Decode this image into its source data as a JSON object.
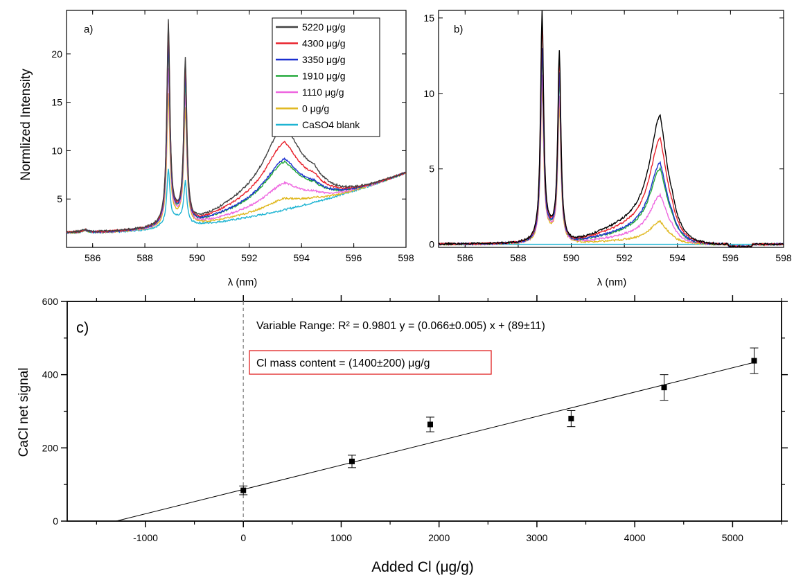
{
  "chart_data": [
    {
      "panel": "a)",
      "type": "line",
      "xlabel": "λ (nm)",
      "ylabel": "Normlized Intensity",
      "xlim": [
        585,
        598
      ],
      "ylim": [
        0,
        24.5
      ],
      "xticks": [
        586,
        588,
        590,
        592,
        594,
        596,
        598
      ],
      "yticks": [
        5,
        10,
        15,
        20
      ],
      "legend_position": "top-right",
      "series": [
        {
          "name": "5220 μg/g",
          "color": "#404040",
          "peaks": {
            "na1": 22.8,
            "na2": 19.0,
            "cacl": 11.3
          }
        },
        {
          "name": "4300 μg/g",
          "color": "#e8202a",
          "peaks": {
            "na1": 22.4,
            "na2": 18.6,
            "cacl": 10.0
          }
        },
        {
          "name": "3350 μg/g",
          "color": "#1a2fd0",
          "peaks": {
            "na1": 20.7,
            "na2": 17.6,
            "cacl": 8.8
          }
        },
        {
          "name": "1910 μg/g",
          "color": "#22a83a",
          "peaks": {
            "na1": 20.3,
            "na2": 16.8,
            "cacl": 8.6
          }
        },
        {
          "name": "1110 μg/g",
          "color": "#ee66e0",
          "peaks": {
            "na1": 18.0,
            "na2": 15.5,
            "cacl": 7.1
          }
        },
        {
          "name": "0 μg/g",
          "color": "#e0b820",
          "peaks": {
            "na1": 15.5,
            "na2": 14.0,
            "cacl": 6.0
          }
        },
        {
          "name": "CaSO4 blank",
          "color": "#1eb4d2",
          "peaks": {
            "na1": 7.8,
            "na2": 6.6,
            "cacl": 5.2
          }
        }
      ]
    },
    {
      "panel": "b)",
      "type": "line",
      "xlabel": "λ (nm)",
      "xlim": [
        585,
        598
      ],
      "ylim": [
        -0.2,
        15.5
      ],
      "xticks": [
        586,
        588,
        590,
        592,
        594,
        596,
        598
      ],
      "yticks": [
        0,
        5,
        10,
        15
      ],
      "series": [
        {
          "color": "#000000",
          "peaks": {
            "na1": 15.0,
            "na2": 12.4,
            "cacl": 6.8
          }
        },
        {
          "color": "#e8202a",
          "peaks": {
            "na1": 14.3,
            "na2": 12.0,
            "cacl": 5.6
          }
        },
        {
          "color": "#1a2fd0",
          "peaks": {
            "na1": 12.5,
            "na2": 11.0,
            "cacl": 4.3
          }
        },
        {
          "color": "#22a83a",
          "peaks": {
            "na1": 12.2,
            "na2": 10.6,
            "cacl": 4.0
          }
        },
        {
          "color": "#ee66e0",
          "peaks": {
            "na1": 10.8,
            "na2": 9.5,
            "cacl": 2.6
          }
        },
        {
          "color": "#e0b820",
          "peaks": {
            "na1": 10.0,
            "na2": 8.8,
            "cacl": 1.2
          }
        },
        {
          "color": "#1eb4d2",
          "peaks": {
            "na1": 0.0,
            "na2": 0.0,
            "cacl": 0.0
          }
        }
      ]
    },
    {
      "panel": "c)",
      "type": "scatter",
      "xlabel": "Added Cl (μg/g)",
      "ylabel": "CaCl net signal",
      "xlim": [
        -1800,
        5500
      ],
      "ylim": [
        0,
        600
      ],
      "xticks": [
        -1000,
        0,
        1000,
        2000,
        3000,
        4000,
        5000
      ],
      "yticks": [
        0,
        200,
        400,
        600
      ],
      "points": [
        {
          "x": 0,
          "y": 84,
          "err": 12
        },
        {
          "x": 1110,
          "y": 163,
          "err": 17
        },
        {
          "x": 1910,
          "y": 264,
          "err": 20
        },
        {
          "x": 3350,
          "y": 280,
          "err": 22
        },
        {
          "x": 4300,
          "y": 365,
          "err": 35
        },
        {
          "x": 5220,
          "y": 438,
          "err": 35
        }
      ],
      "fit": {
        "slope": 0.066,
        "intercept": 89,
        "x_from": -1300,
        "x_to": 5220
      },
      "annotation_fit": "Variable Range: R² = 0.9801     y = (0.066±0.005) x + (89±11)",
      "annotation_result": "Cl mass content = (1400±200) μg/g"
    }
  ]
}
